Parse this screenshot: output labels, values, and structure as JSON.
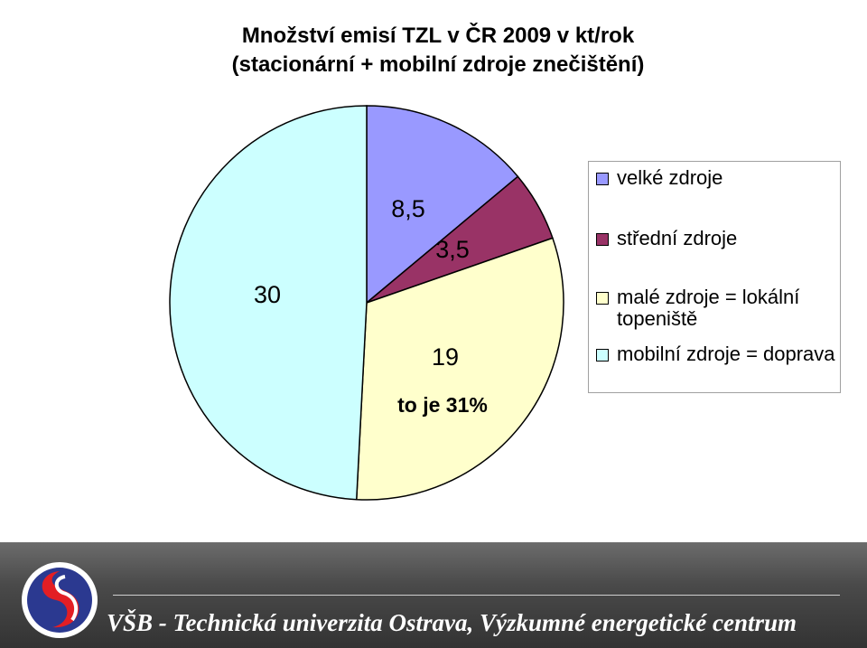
{
  "chart_data": {
    "type": "pie",
    "title": "Množství emisí TZL v ČR 2009 v kt/rok",
    "subtitle": "(stacionární + mobilní zdroje znečištění)",
    "categories": [
      "velké zdroje",
      "střední zdroje",
      "malé zdroje = lokální topeniště",
      "mobilní zdroje = doprava"
    ],
    "values": [
      8.5,
      3.5,
      19,
      30
    ],
    "data_labels": [
      "8,5",
      "3,5",
      "19",
      "30"
    ],
    "annotations": [
      "to je 31%"
    ],
    "colors": [
      "#9999ff",
      "#993366",
      "#ffffcc",
      "#ccffff"
    ],
    "legend_position": "right"
  },
  "footer": {
    "text": "VŠB - Technická univerzita Ostrava, Výzkumné energetické centrum",
    "logo_icon": "vsb-logo-icon",
    "logo_colors": [
      "#2b3990",
      "#e31e24"
    ]
  }
}
